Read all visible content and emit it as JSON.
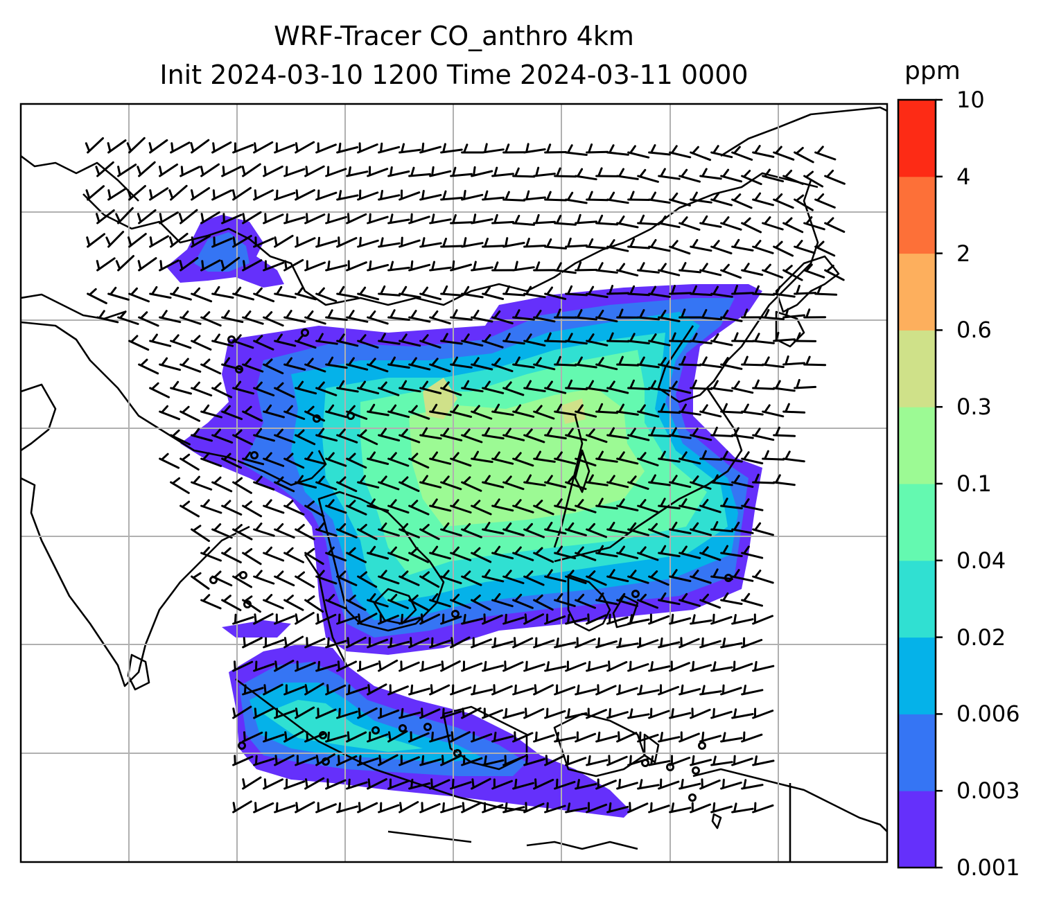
{
  "title_line1": "WRF-Tracer CO_anthro 4km",
  "title_line2": "Init 2024-03-10 1200 Time 2024-03-11 0000",
  "colorbar": {
    "unit": "ppm",
    "levels": [
      "0.001",
      "0.003",
      "0.006",
      "0.02",
      "0.04",
      "0.1",
      "0.3",
      "0.6",
      "2",
      "4",
      "10"
    ],
    "colors": [
      "#6530fb",
      "#3575f4",
      "#05b2e9",
      "#30e0d2",
      "#64f9b0",
      "#9cfa94",
      "#cfe189",
      "#fdaf5d",
      "#fd7038",
      "#fd2b15"
    ]
  },
  "map": {
    "field": "CO_anthro",
    "overlay": "wind barbs",
    "gridlines": true,
    "frame_color": "#000000"
  }
}
